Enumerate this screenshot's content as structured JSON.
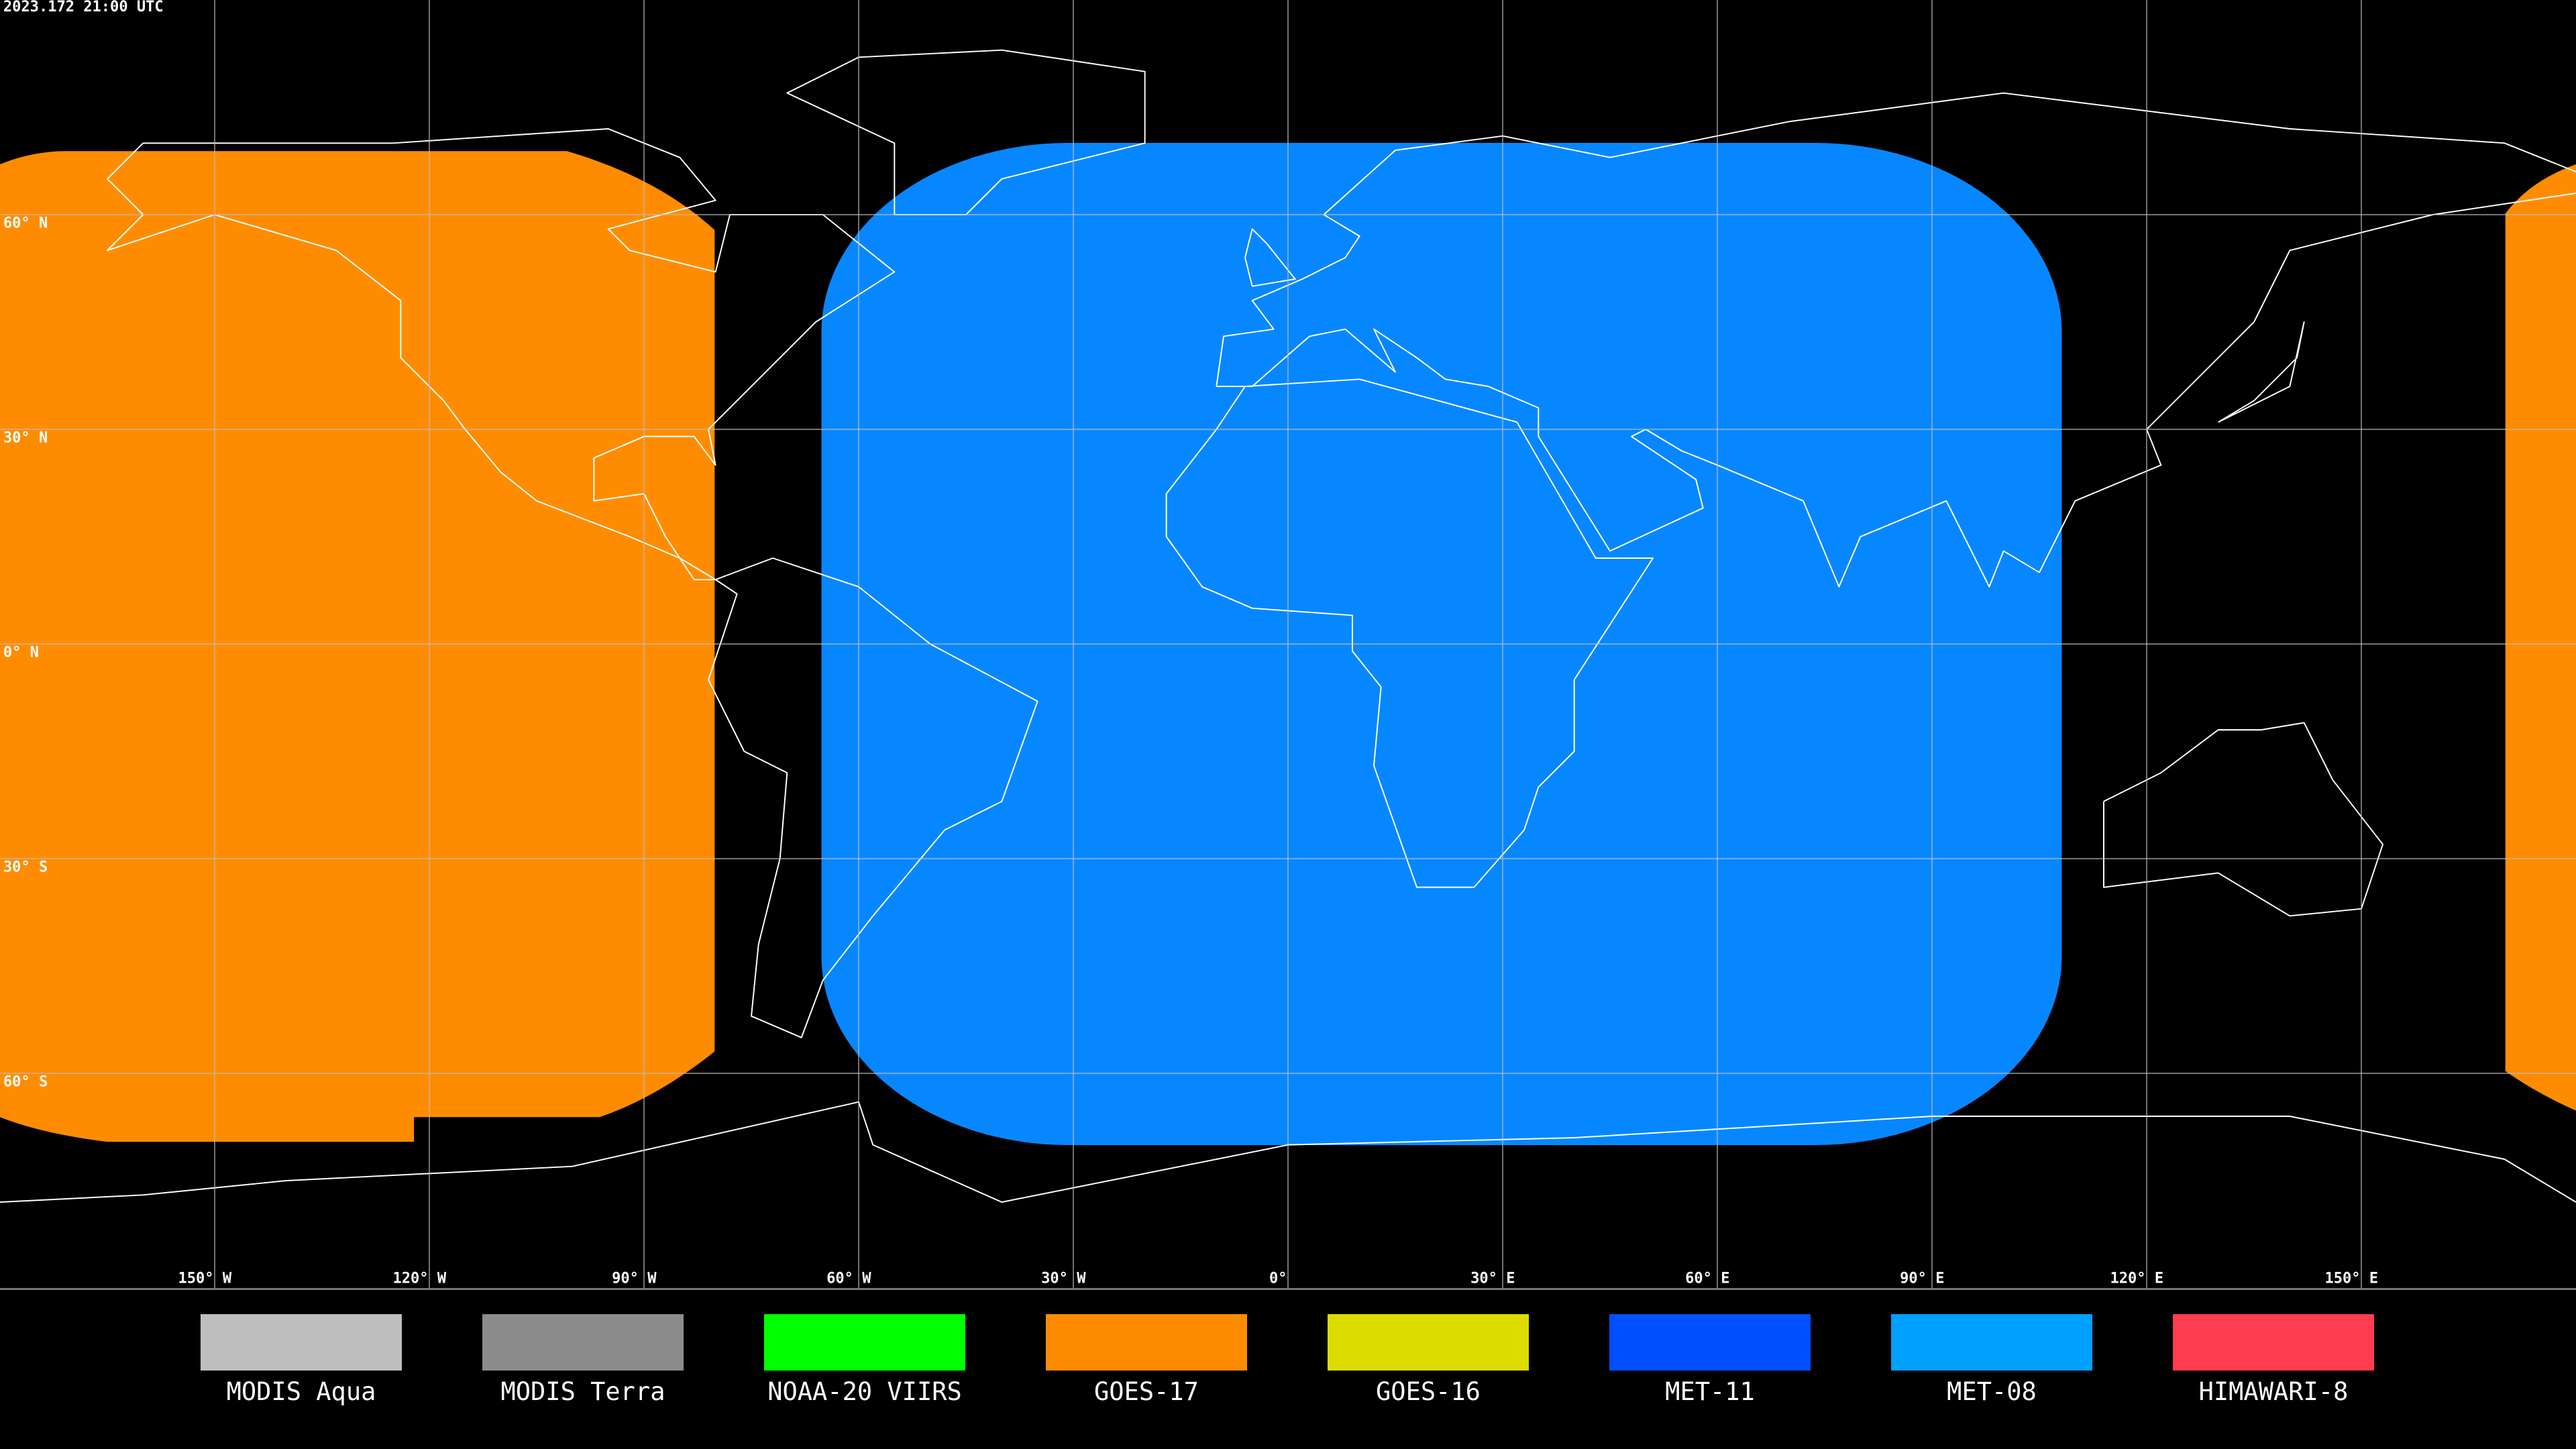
{
  "timestamp": "2023.172 21:00 UTC",
  "lat_labels": [
    "60° N",
    "30° N",
    "0° N",
    "30° S",
    "60° S"
  ],
  "lon_labels": [
    "150° W",
    "120° W",
    "90° W",
    "60° W",
    "30° W",
    "0°",
    "30° E",
    "60° E",
    "90° E",
    "120° E",
    "150° E"
  ],
  "legend": [
    {
      "label": "MODIS Aqua",
      "color": "#bebebe"
    },
    {
      "label": "MODIS Terra",
      "color": "#8c8c8c"
    },
    {
      "label": "NOAA-20 VIIRS",
      "color": "#00ff00"
    },
    {
      "label": "GOES-17",
      "color": "#ff8c00"
    },
    {
      "label": "GOES-16",
      "color": "#dcdc00"
    },
    {
      "label": "MET-11",
      "color": "#0050ff"
    },
    {
      "label": "MET-08",
      "color": "#00a0ff"
    },
    {
      "label": "HIMAWARI-8",
      "color": "#ff3c50"
    }
  ]
}
